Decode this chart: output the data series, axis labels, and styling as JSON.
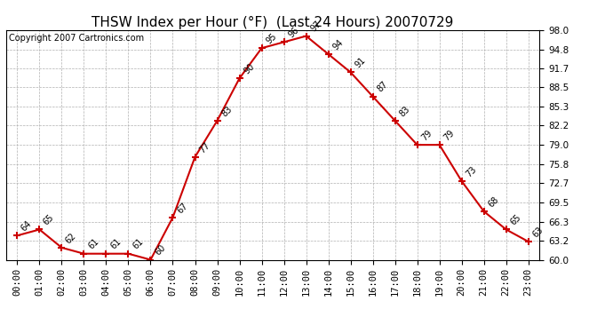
{
  "title": "THSW Index per Hour (°F)  (Last 24 Hours) 20070729",
  "copyright": "Copyright 2007 Cartronics.com",
  "hours": [
    0,
    1,
    2,
    3,
    4,
    5,
    6,
    7,
    8,
    9,
    10,
    11,
    12,
    13,
    14,
    15,
    16,
    17,
    18,
    19,
    20,
    21,
    22,
    23
  ],
  "hour_labels": [
    "00:00",
    "01:00",
    "02:00",
    "03:00",
    "04:00",
    "05:00",
    "06:00",
    "07:00",
    "08:00",
    "09:00",
    "10:00",
    "11:00",
    "12:00",
    "13:00",
    "14:00",
    "15:00",
    "16:00",
    "17:00",
    "18:00",
    "19:00",
    "20:00",
    "21:00",
    "22:00",
    "23:00"
  ],
  "values": [
    64,
    65,
    62,
    61,
    61,
    61,
    60,
    67,
    77,
    83,
    90,
    95,
    96,
    97,
    94,
    91,
    87,
    83,
    79,
    79,
    73,
    68,
    65,
    63
  ],
  "ylim": [
    60.0,
    98.0
  ],
  "yticks": [
    60.0,
    63.2,
    66.3,
    69.5,
    72.7,
    75.8,
    79.0,
    82.2,
    85.3,
    88.5,
    91.7,
    94.8,
    98.0
  ],
  "line_color": "#cc0000",
  "marker_color": "#cc0000",
  "bg_color": "#ffffff",
  "grid_color": "#b0b0b0",
  "title_fontsize": 11,
  "copyright_fontsize": 7,
  "tick_fontsize": 7.5,
  "annotation_fontsize": 7
}
